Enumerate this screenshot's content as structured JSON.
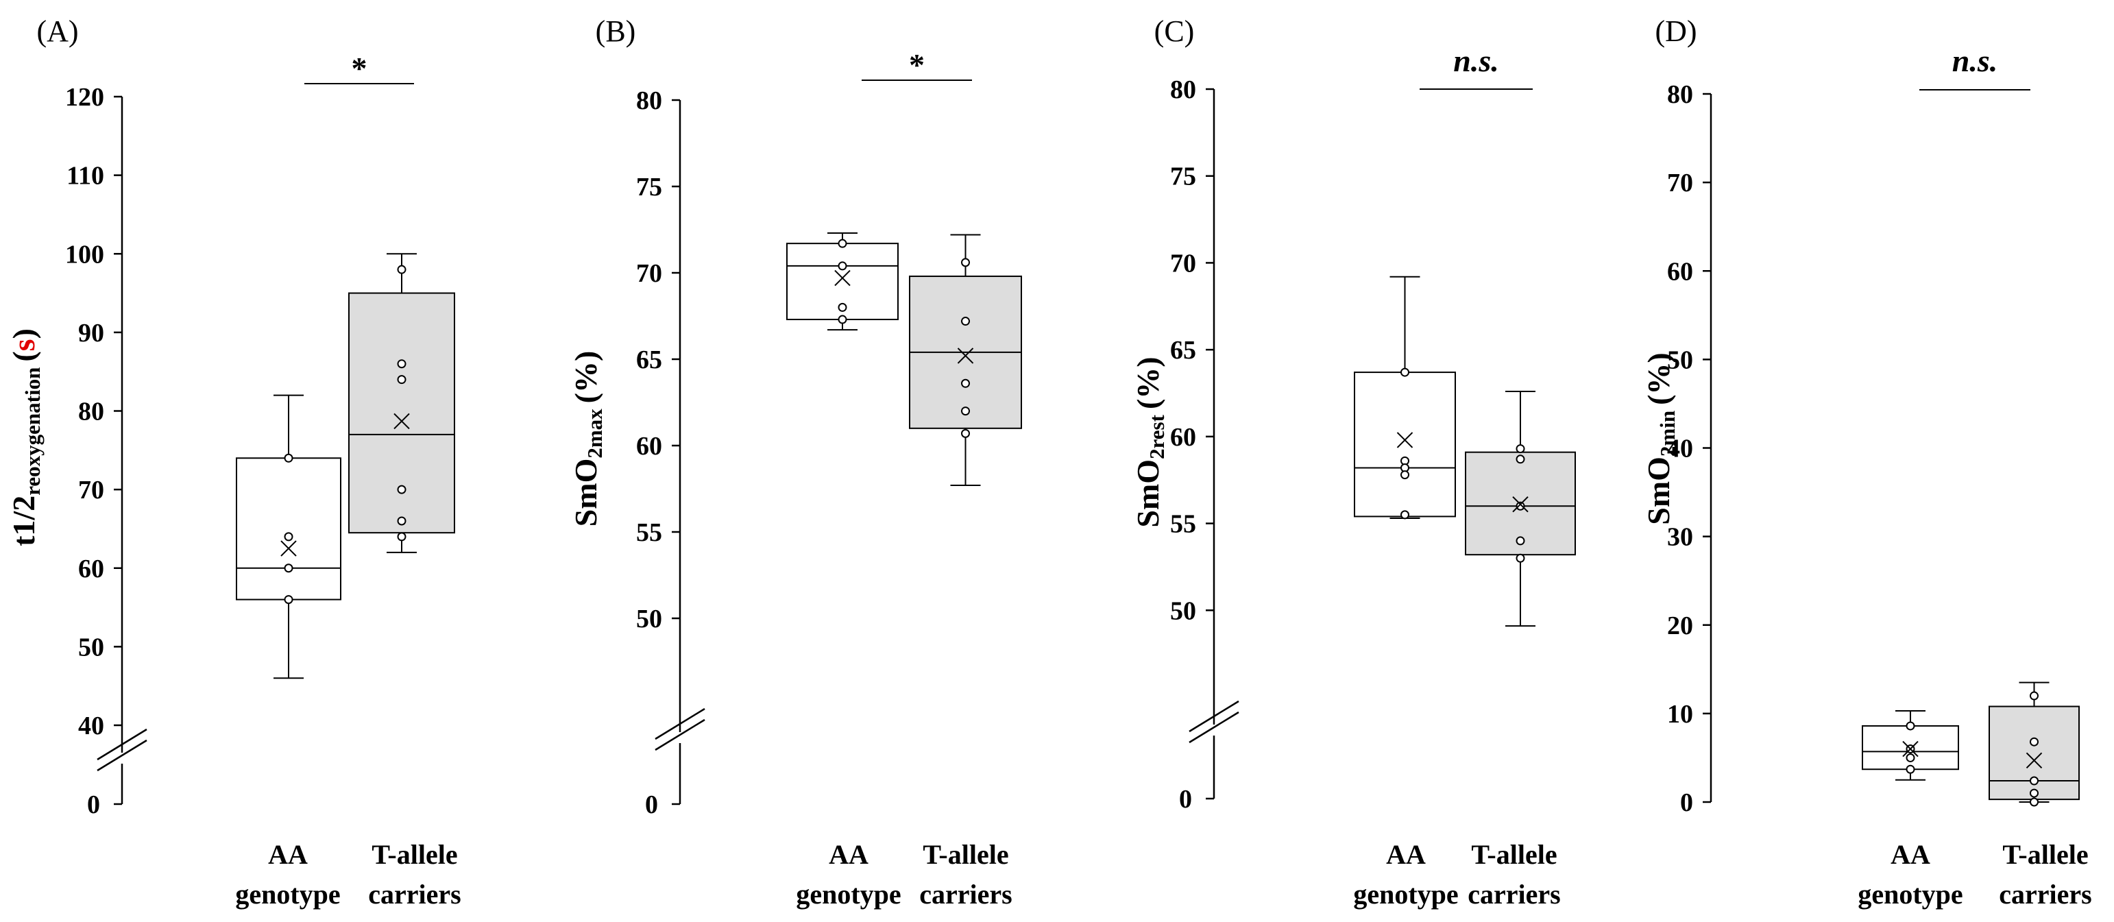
{
  "figure": {
    "colors": {
      "box_fill": [
        "#ffffff",
        "#dddddd"
      ],
      "stroke": "#000000",
      "unit_highlight": "#e00000"
    }
  },
  "chart_data": [
    {
      "type": "box",
      "panel_label": "(A)",
      "ylabel_main": "t1/2",
      "ylabel_sub": "reoxygenation",
      "ylabel_unit": "s",
      "yaxis_break": true,
      "baseline_tick": "0",
      "ylim": [
        40,
        120
      ],
      "yticks": [
        "40",
        "50",
        "60",
        "70",
        "80",
        "90",
        "100",
        "110",
        "120"
      ],
      "significance": "*",
      "categories": [
        {
          "line1": "AA",
          "line2": "genotype"
        },
        {
          "line1": "T-allele",
          "line2": "carriers"
        }
      ],
      "series": [
        {
          "name": "AA genotype",
          "min": 46,
          "q1": 56,
          "median": 60,
          "q3": 74,
          "max": 82,
          "mean": 62.5,
          "points": [
            74,
            64,
            60,
            56
          ]
        },
        {
          "name": "T-allele carriers",
          "min": 62,
          "q1": 64.5,
          "median": 77,
          "q3": 95,
          "max": 100,
          "mean": 78.7,
          "points": [
            98,
            86,
            84,
            70,
            66,
            64
          ]
        }
      ]
    },
    {
      "type": "box",
      "panel_label": "(B)",
      "ylabel_main": "SmO",
      "ylabel_sub": "2max",
      "ylabel_unit": "(%)",
      "yaxis_break": true,
      "baseline_tick": "0",
      "ylim": [
        45,
        80
      ],
      "yticks": [
        "50",
        "55",
        "60",
        "65",
        "70",
        "75",
        "80"
      ],
      "significance": "*",
      "categories": [
        {
          "line1": "AA",
          "line2": "genotype"
        },
        {
          "line1": "T-allele",
          "line2": "carriers"
        }
      ],
      "series": [
        {
          "name": "AA genotype",
          "min": 66.7,
          "q1": 67.3,
          "median": 70.4,
          "q3": 71.7,
          "max": 72.3,
          "mean": 69.7,
          "points": [
            71.7,
            70.4,
            68,
            67.3
          ]
        },
        {
          "name": "T-allele carriers",
          "min": 57.7,
          "q1": 61,
          "median": 65.4,
          "q3": 69.8,
          "max": 72.2,
          "mean": 65.2,
          "points": [
            70.6,
            67.2,
            63.6,
            62,
            60.7
          ]
        }
      ]
    },
    {
      "type": "box",
      "panel_label": "(C)",
      "ylabel_main": "SmO",
      "ylabel_sub": "2rest",
      "ylabel_unit": "(%)",
      "yaxis_break": true,
      "baseline_tick": "0",
      "ylim": [
        45,
        80
      ],
      "yticks": [
        "50",
        "55",
        "60",
        "65",
        "70",
        "75",
        "80"
      ],
      "significance": "n.s.",
      "categories": [
        {
          "line1": "AA",
          "line2": "genotype"
        },
        {
          "line1": "T-allele",
          "line2": "carriers"
        }
      ],
      "series": [
        {
          "name": "AA genotype",
          "min": 55.3,
          "q1": 55.4,
          "median": 58.2,
          "q3": 63.7,
          "max": 69.2,
          "mean": 59.8,
          "points": [
            63.7,
            58.6,
            58.2,
            57.8,
            55.5
          ]
        },
        {
          "name": "T-allele carriers",
          "min": 49.1,
          "q1": 53.2,
          "median": 56,
          "q3": 59.1,
          "max": 62.6,
          "mean": 56.1,
          "points": [
            59.3,
            58.7,
            56,
            54,
            53
          ]
        }
      ]
    },
    {
      "type": "box",
      "panel_label": "(D)",
      "ylabel_main": "SmO",
      "ylabel_sub": "2min",
      "ylabel_unit": "(%)",
      "yaxis_break": false,
      "ylim": [
        0,
        80
      ],
      "yticks": [
        "0",
        "10",
        "20",
        "30",
        "40",
        "50",
        "60",
        "70",
        "80"
      ],
      "significance": "n.s.",
      "categories": [
        {
          "line1": "AA",
          "line2": "genotype"
        },
        {
          "line1": "T-allele",
          "line2": "carriers"
        }
      ],
      "series": [
        {
          "name": "AA genotype",
          "min": 2.5,
          "q1": 3.7,
          "median": 5.7,
          "q3": 8.6,
          "max": 10.3,
          "mean": 6,
          "points": [
            8.6,
            6,
            5,
            3.7
          ]
        },
        {
          "name": "T-allele carriers",
          "min": 0,
          "q1": 0.3,
          "median": 2.4,
          "q3": 10.8,
          "max": 13.5,
          "mean": 4.7,
          "points": [
            12,
            6.8,
            2.4,
            1,
            0
          ]
        }
      ]
    }
  ]
}
